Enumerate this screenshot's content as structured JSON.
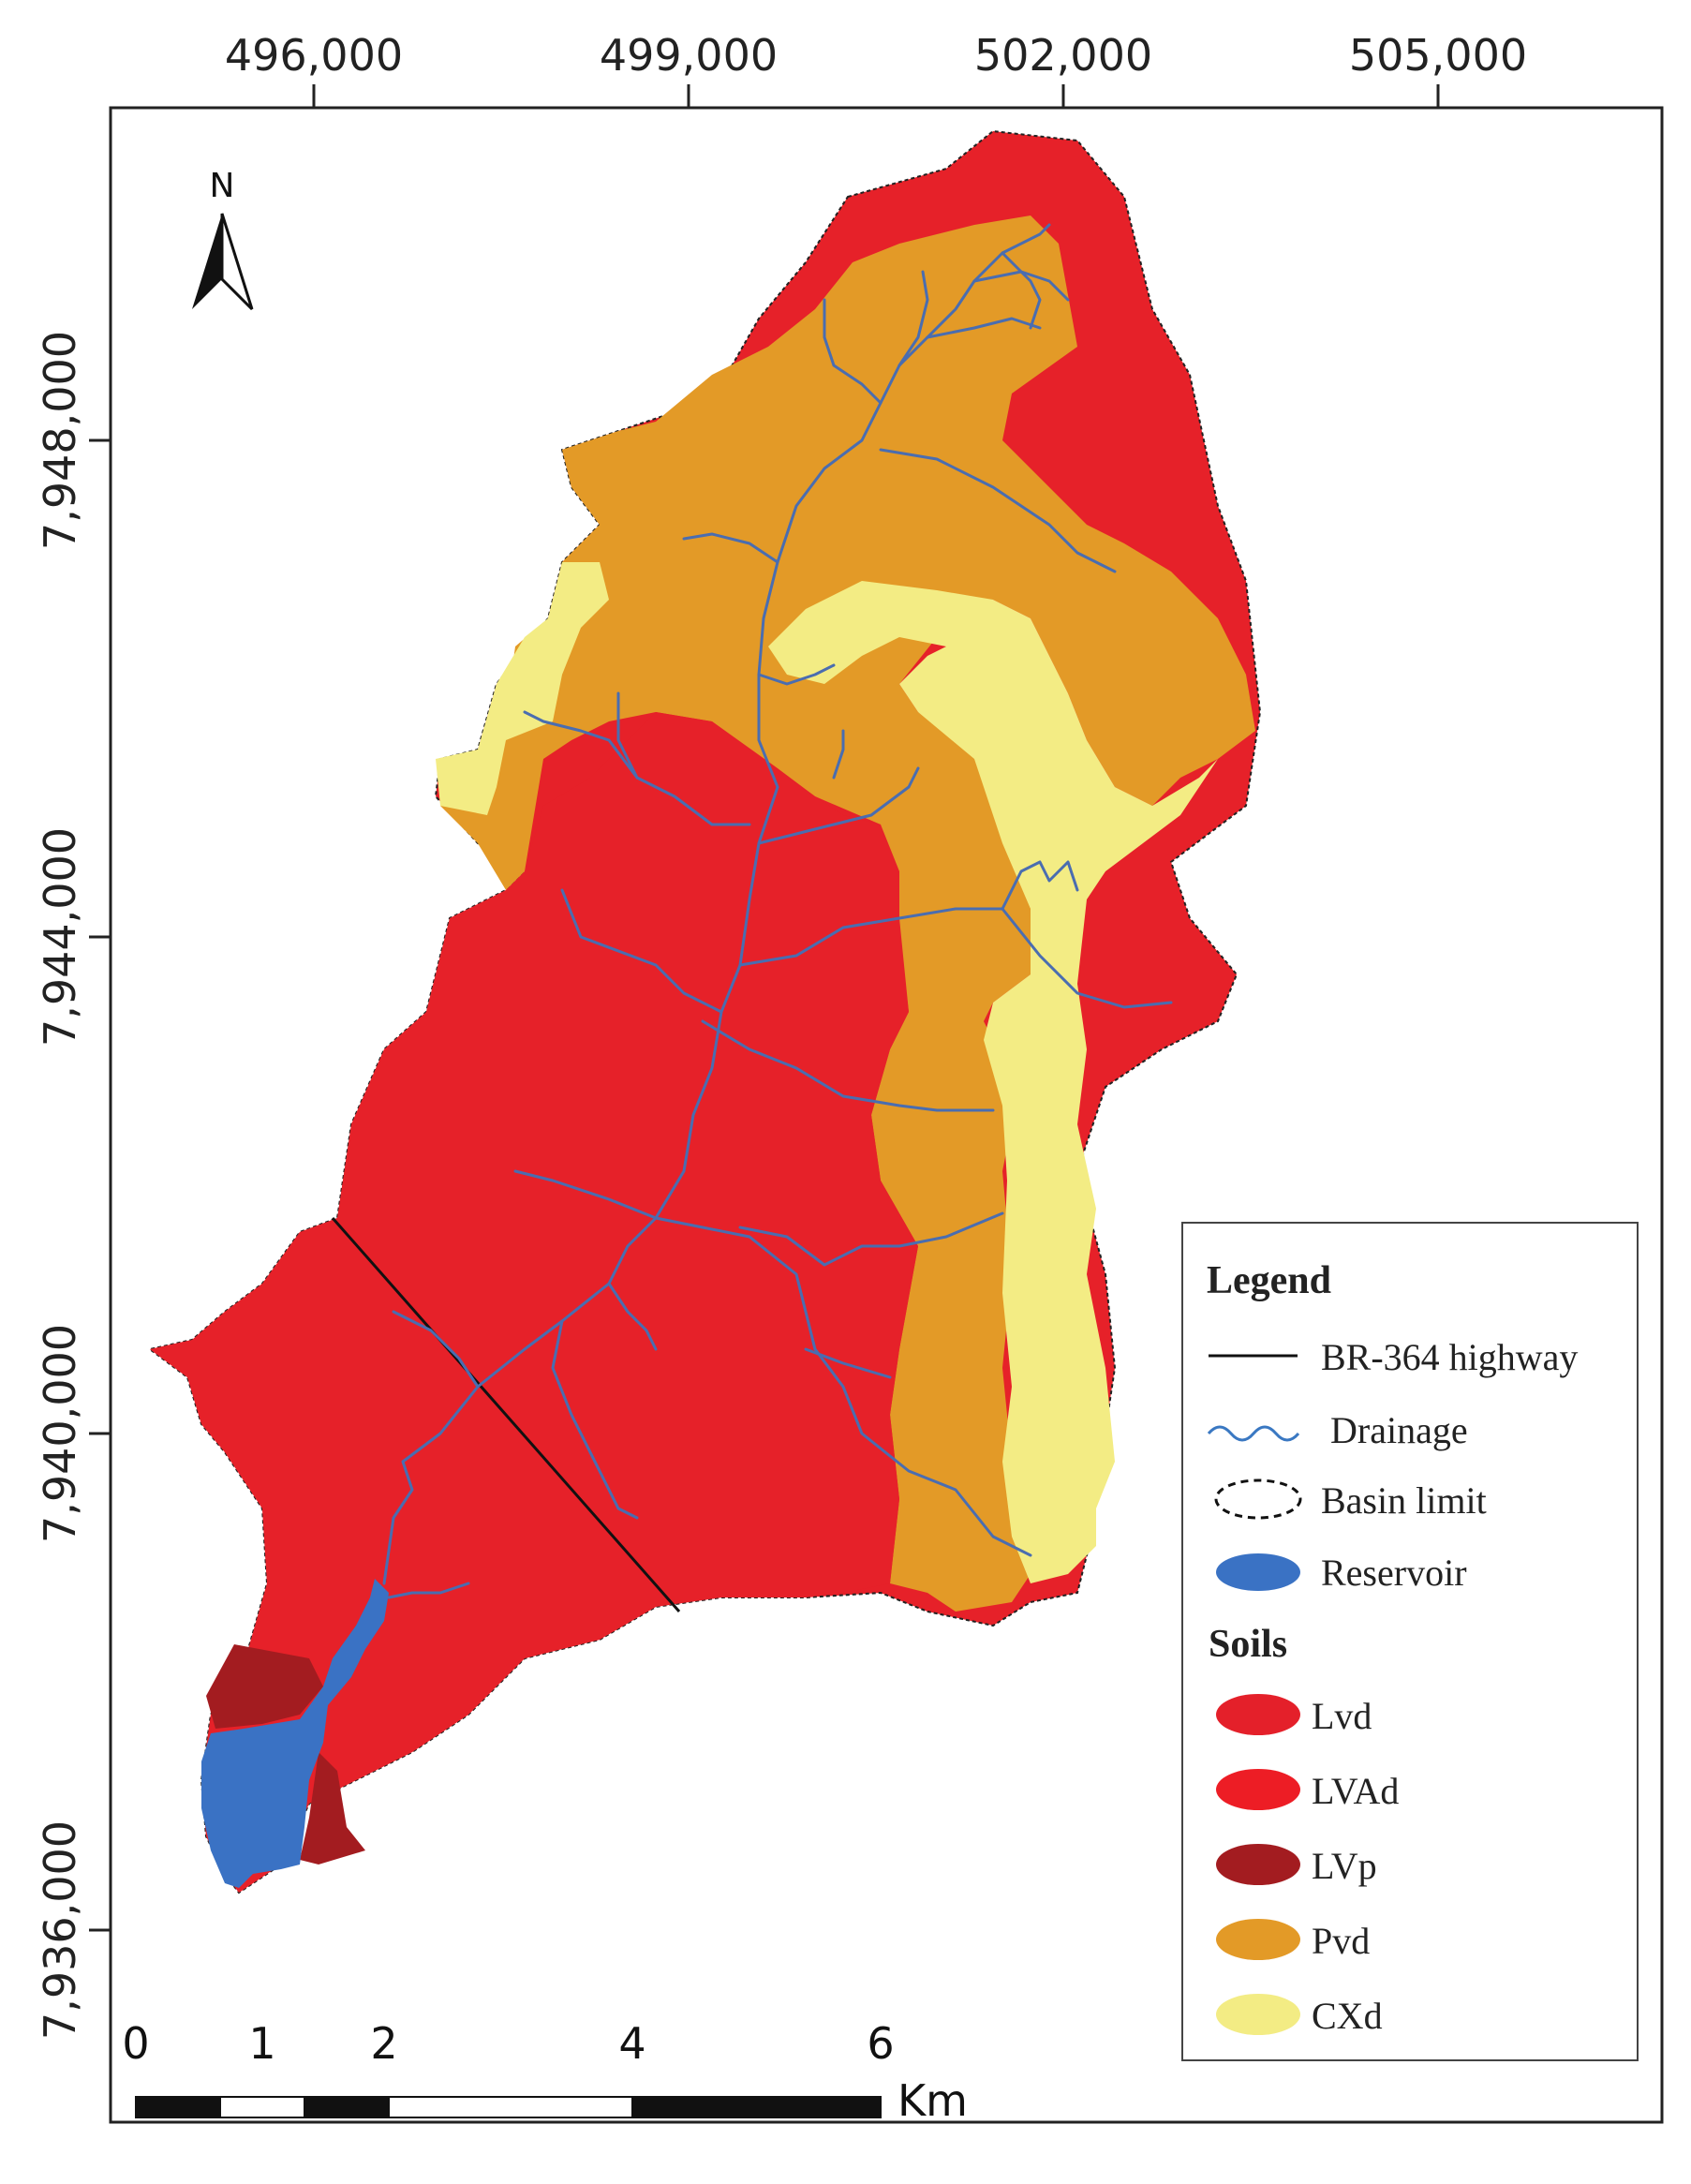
{
  "map": {
    "x_ticks": [
      "496,000",
      "499,000",
      "502,000",
      "505,000"
    ],
    "y_ticks": [
      "7,948,000",
      "7,944,000",
      "7,940,000",
      "7,936,000"
    ],
    "north_label": "N"
  },
  "legend": {
    "title": "Legend",
    "items": [
      {
        "label": "BR-364 highway",
        "symbol": "line",
        "color": "#111111"
      },
      {
        "label": "Drainage",
        "symbol": "wave",
        "color": "#3a78c2"
      },
      {
        "label": "Basin limit",
        "symbol": "dashed-ellipse",
        "color": "#111111"
      },
      {
        "label": "Reservoir",
        "symbol": "ellipse",
        "color": "#3a72c4"
      }
    ],
    "soils_title": "Soils",
    "soils": [
      {
        "label": "Lvd",
        "color": "#e4202a"
      },
      {
        "label": "LVAd",
        "color": "#ed1d25"
      },
      {
        "label": "LVp",
        "color": "#a31c20"
      },
      {
        "label": "Pvd",
        "color": "#e39a27"
      },
      {
        "label": "CXd",
        "color": "#f3ec84"
      }
    ]
  },
  "scale_bar": {
    "labels": [
      "0",
      "1",
      "2",
      "4",
      "6"
    ],
    "unit": "Km"
  },
  "colors": {
    "red_soil": "#e62129",
    "orange_soil": "#e39a27",
    "yellow_soil": "#f3ec84",
    "dark_red_soil": "#a31c20",
    "reservoir": "#3a72c4",
    "drainage": "#4a6db0",
    "frame": "#222222"
  }
}
